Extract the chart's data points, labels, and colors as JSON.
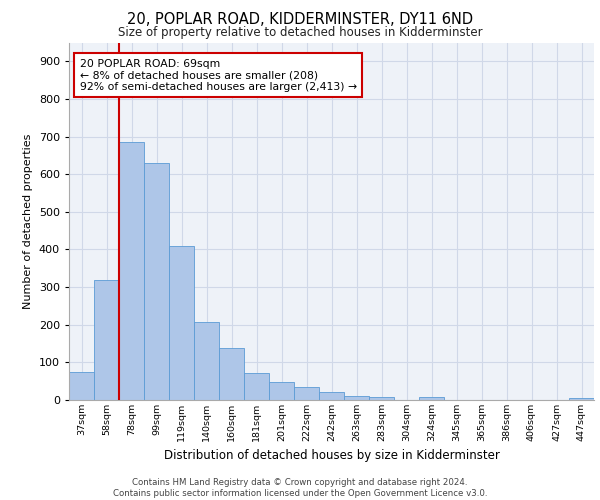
{
  "title": "20, POPLAR ROAD, KIDDERMINSTER, DY11 6ND",
  "subtitle": "Size of property relative to detached houses in Kidderminster",
  "xlabel": "Distribution of detached houses by size in Kidderminster",
  "ylabel": "Number of detached properties",
  "categories": [
    "37sqm",
    "58sqm",
    "78sqm",
    "99sqm",
    "119sqm",
    "140sqm",
    "160sqm",
    "181sqm",
    "201sqm",
    "222sqm",
    "242sqm",
    "263sqm",
    "283sqm",
    "304sqm",
    "324sqm",
    "345sqm",
    "365sqm",
    "386sqm",
    "406sqm",
    "427sqm",
    "447sqm"
  ],
  "values": [
    75,
    320,
    685,
    630,
    410,
    208,
    138,
    72,
    48,
    35,
    22,
    10,
    8,
    0,
    8,
    0,
    0,
    0,
    0,
    0,
    5
  ],
  "bar_color": "#aec6e8",
  "bar_edge_color": "#5b9bd5",
  "annotation_text": "20 POPLAR ROAD: 69sqm\n← 8% of detached houses are smaller (208)\n92% of semi-detached houses are larger (2,413) →",
  "annotation_box_color": "#ffffff",
  "annotation_box_edge": "#cc0000",
  "vline_color": "#cc0000",
  "grid_color": "#d0d8e8",
  "background_color": "#eef2f8",
  "footer_text": "Contains HM Land Registry data © Crown copyright and database right 2024.\nContains public sector information licensed under the Open Government Licence v3.0.",
  "ylim": [
    0,
    950
  ],
  "yticks": [
    0,
    100,
    200,
    300,
    400,
    500,
    600,
    700,
    800,
    900
  ]
}
